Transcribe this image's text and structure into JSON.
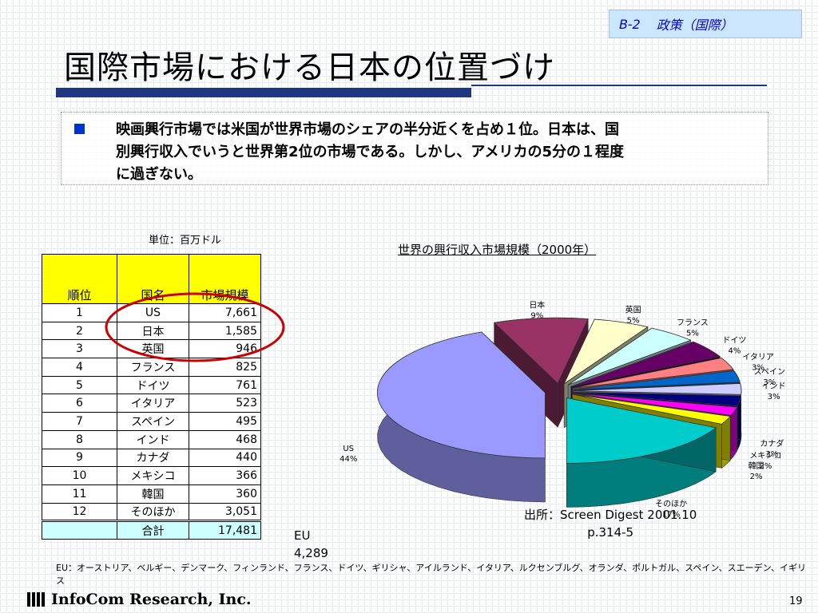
{
  "tag": {
    "code": "B-2",
    "label": "政策（国際）"
  },
  "title": "国際市場における日本の位置づけ",
  "bullet": {
    "lines": [
      "映画興行市場では米国が世界市場のシェアの半分近くを占め１位。日本は、国",
      "別興行収入でいうと世界第2位の市場である。しかし、アメリカの5分の１程度",
      "に過ぎない。"
    ]
  },
  "table": {
    "unit": "単位：百万ドル",
    "headers": [
      "順位",
      "国名",
      "市場規模"
    ],
    "rows": [
      [
        "1",
        "US",
        "7,661"
      ],
      [
        "2",
        "日本",
        "1,585"
      ],
      [
        "3",
        "英国",
        "946"
      ],
      [
        "4",
        "フランス",
        "825"
      ],
      [
        "5",
        "ドイツ",
        "761"
      ],
      [
        "6",
        "イタリア",
        "523"
      ],
      [
        "7",
        "スペイン",
        "495"
      ],
      [
        "8",
        "インド",
        "468"
      ],
      [
        "9",
        "カナダ",
        "440"
      ],
      [
        "10",
        "メキシコ",
        "366"
      ],
      [
        "11",
        "韓国",
        "360"
      ],
      [
        "12",
        "そのほか",
        "3,051"
      ]
    ],
    "total": [
      "",
      "合計",
      "17,481"
    ]
  },
  "eu": {
    "label": "EU",
    "value": "4,289"
  },
  "chart_data": {
    "type": "pie",
    "title": "世界の興行収入市場規模（2000年）",
    "series": [
      {
        "name": "US",
        "pct": "44%",
        "value": 7661,
        "color": "#9999ff"
      },
      {
        "name": "日本",
        "pct": "9%",
        "value": 1585,
        "color": "#993366"
      },
      {
        "name": "英国",
        "pct": "5%",
        "value": 946,
        "color": "#ffffcc"
      },
      {
        "name": "フランス",
        "pct": "5%",
        "value": 825,
        "color": "#ccffff"
      },
      {
        "name": "ドイツ",
        "pct": "4%",
        "value": 761,
        "color": "#660066"
      },
      {
        "name": "イタリア",
        "pct": "3%",
        "value": 523,
        "color": "#ff8080"
      },
      {
        "name": "スペイン",
        "pct": "3%",
        "value": 495,
        "color": "#0066cc"
      },
      {
        "name": "インド",
        "pct": "3%",
        "value": 468,
        "color": "#ccccff"
      },
      {
        "name": "カナダ",
        "pct": "3%",
        "value": 440,
        "color": "#000080"
      },
      {
        "name": "メキシコ",
        "pct": "2%",
        "value": 366,
        "color": "#ff00ff"
      },
      {
        "name": "韓国",
        "pct": "2%",
        "value": 360,
        "color": "#ffff00"
      },
      {
        "name": "そのほか",
        "pct": "17%",
        "value": 3051,
        "color": "#00cccc"
      }
    ]
  },
  "source": {
    "line1": "出所：Screen Digest 2001.10",
    "line2": "p.314-5"
  },
  "eu_note": "EU：オーストリア、ベルギー、デンマーク、フィンランド、フランス、ドイツ、ギリシャ、アイルランド、イタリア、ルクセンブルグ、オランダ、ポルトガル、スペイン、スエーデン、イギリス",
  "footer": {
    "company": "InfoCom Research, Inc.",
    "page": "19"
  },
  "colors": {
    "accent": "#1f3680",
    "tag_bg": "#cce6ff",
    "table_header": "#ffff00",
    "highlight": "#cc0000"
  }
}
